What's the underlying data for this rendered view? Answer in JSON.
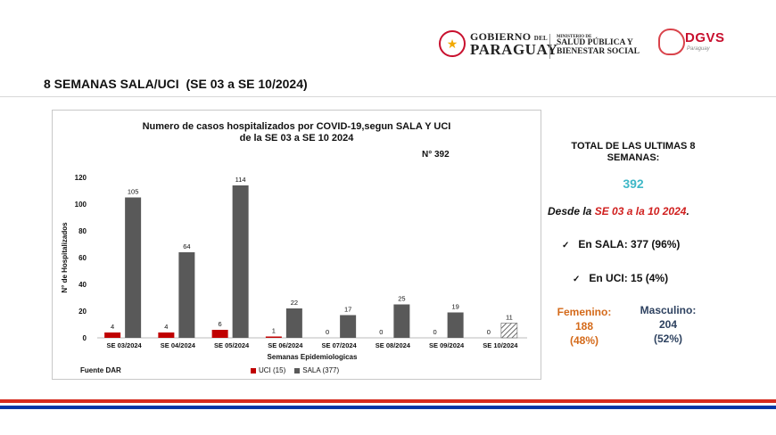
{
  "header": {
    "gobierno_line1": "GOBIERNO",
    "gobierno_del": "DEL",
    "gobierno_line2": "PARAGUAY",
    "ministerio_small": "MINISTERIO DE",
    "ministerio_line1": "SALUD PÚBLICA Y",
    "ministerio_line2": "BIENESTAR SOCIAL",
    "dgvs": "DGVS",
    "dgvs_sub": "Paraguay"
  },
  "page_title": "8 SEMANAS SALA/UCI  (SE 03 a SE 10/2024)",
  "chart_data": {
    "type": "bar",
    "title_line1": "Numero de casos hospitalizados por COVID-19,segun SALA Y UCI",
    "title_line2": "de la SE 03 a SE 10 2024",
    "annotation": "N° 392",
    "xlabel": "Semanas Epidemiologicas",
    "ylabel": "N° de Hospitalizados",
    "ylim": [
      0,
      120
    ],
    "yticks": [
      "0",
      "20",
      "40",
      "60",
      "80",
      "100",
      "120"
    ],
    "categories": [
      "SE 03/2024",
      "SE 04/2024",
      "SE 05/2024",
      "SE 06/2024",
      "SE 07/2024",
      "SE 08/2024",
      "SE 09/2024",
      "SE 10/2024"
    ],
    "series": [
      {
        "name": "UCI (15)",
        "color": "#c00000",
        "values": [
          4,
          4,
          6,
          1,
          0,
          0,
          0,
          0
        ]
      },
      {
        "name": "SALA (377)",
        "color": "#595959",
        "values": [
          105,
          64,
          114,
          22,
          17,
          25,
          19,
          11
        ]
      }
    ],
    "last_bar_pattern": "hatched",
    "source": "Fuente DAR"
  },
  "summary": {
    "total_label_line1": "TOTAL DE LAS ULTIMAS 8",
    "total_label_line2": "SEMANAS:",
    "total_value": "392",
    "range_prefix": "Desde la ",
    "range_highlight": "SE 03 a la 10 2024",
    "range_suffix": ".",
    "sala_text": "En SALA: 377 (96%)",
    "uci_text": "En UCI: 15 (4%)",
    "check_glyph": "✓",
    "femenino_label": "Femenino:",
    "femenino_count": "188",
    "femenino_pct": "(48%)",
    "masculino_label": "Masculino:",
    "masculino_count": "204",
    "masculino_pct": "(52%)"
  },
  "colors": {
    "stripe_red": "#d52b1e",
    "stripe_blue": "#0038a8",
    "accent_teal": "#3fb8c7",
    "femenino": "#d46a1a",
    "masculino": "#2e4260"
  }
}
